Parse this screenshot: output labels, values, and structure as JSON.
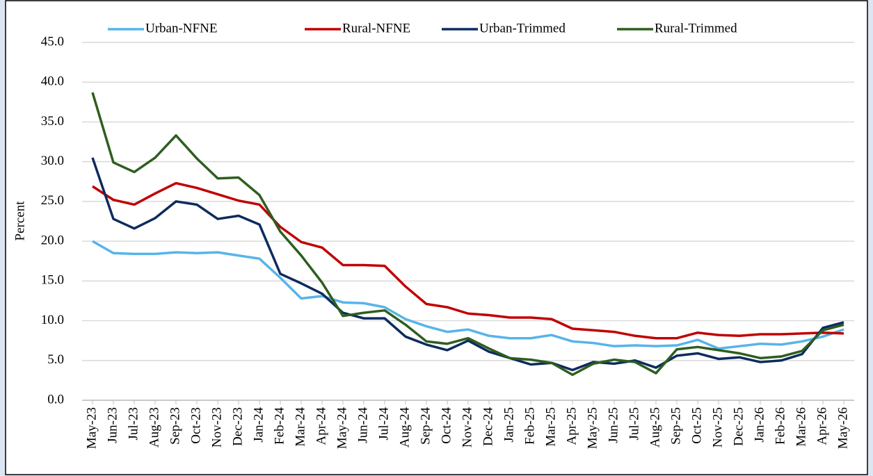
{
  "chart_data": {
    "type": "line",
    "y_label": "Percent",
    "categories": [
      "May-23",
      "Jun-23",
      "Jul-23",
      "Aug-23",
      "Sep-23",
      "Oct-23",
      "Nov-23",
      "Dec-23",
      "Jan-24",
      "Feb-24",
      "Mar-24",
      "Apr-24",
      "May-24",
      "Jun-24",
      "Jul-24",
      "Aug-24",
      "Sep-24",
      "Oct-24",
      "Nov-24",
      "Dec-24",
      "Jan-25",
      "Feb-25",
      "Mar-25",
      "Apr-25",
      "May-25",
      "Jun-25",
      "Jul-25",
      "Aug-25",
      "Sep-25",
      "Oct-25",
      "Nov-25",
      "Dec-25",
      "Jan-26",
      "Feb-26",
      "Mar-26",
      "Apr-26",
      "May-26"
    ],
    "series": [
      {
        "name": "Urban-NFNE",
        "color": "#56b4e9",
        "values": [
          20.0,
          18.5,
          18.4,
          18.4,
          18.6,
          18.5,
          18.6,
          18.2,
          17.8,
          15.4,
          12.8,
          13.1,
          12.3,
          12.2,
          11.7,
          10.2,
          9.3,
          8.6,
          8.9,
          8.1,
          7.8,
          7.8,
          8.2,
          7.4,
          7.2,
          6.8,
          6.9,
          6.8,
          6.9,
          7.6,
          6.5,
          6.8,
          7.1,
          7.0,
          7.4,
          8.0,
          8.9
        ]
      },
      {
        "name": "Rural-NFNE",
        "color": "#c00000",
        "values": [
          26.9,
          25.2,
          24.6,
          26.0,
          27.3,
          26.7,
          25.9,
          25.1,
          24.6,
          21.8,
          19.9,
          19.2,
          17.0,
          17.0,
          16.9,
          14.3,
          12.1,
          11.7,
          10.9,
          10.7,
          10.4,
          10.4,
          10.2,
          9.0,
          8.8,
          8.6,
          8.1,
          7.8,
          7.8,
          8.5,
          8.2,
          8.1,
          8.3,
          8.3,
          8.4,
          8.5,
          8.4
        ]
      },
      {
        "name": "Urban-Trimmed",
        "color": "#0d2b5e",
        "values": [
          30.5,
          22.8,
          21.6,
          22.9,
          25.0,
          24.6,
          22.8,
          23.2,
          22.1,
          15.9,
          14.7,
          13.4,
          11.0,
          10.3,
          10.3,
          8.0,
          7.0,
          6.3,
          7.5,
          6.1,
          5.3,
          4.5,
          4.7,
          3.8,
          4.8,
          4.6,
          5.0,
          4.1,
          5.6,
          5.9,
          5.2,
          5.4,
          4.8,
          5.0,
          5.8,
          9.1,
          9.8
        ]
      },
      {
        "name": "Rural-Trimmed",
        "color": "#2e5e1e",
        "values": [
          38.7,
          29.9,
          28.7,
          30.5,
          33.3,
          30.4,
          27.9,
          28.0,
          25.8,
          21.2,
          18.2,
          14.8,
          10.6,
          11.0,
          11.3,
          9.5,
          7.4,
          7.1,
          7.8,
          6.5,
          5.3,
          5.1,
          4.7,
          3.2,
          4.6,
          5.1,
          4.8,
          3.4,
          6.4,
          6.7,
          6.3,
          5.9,
          5.3,
          5.5,
          6.2,
          8.8,
          9.5
        ]
      }
    ],
    "ylim": [
      0,
      45
    ],
    "yticks": [
      {
        "value": 0,
        "label": "0.0"
      },
      {
        "value": 5,
        "label": "5.0"
      },
      {
        "value": 10,
        "label": "10.0"
      },
      {
        "value": 15,
        "label": "15.0"
      },
      {
        "value": 20,
        "label": "20.0"
      },
      {
        "value": 25,
        "label": "25.0"
      },
      {
        "value": 30,
        "label": "30.0"
      },
      {
        "value": 35,
        "label": "35.0"
      },
      {
        "value": 40,
        "label": "40.0"
      },
      {
        "value": 45,
        "label": "45.0"
      }
    ],
    "grid": true,
    "legend": "top"
  }
}
